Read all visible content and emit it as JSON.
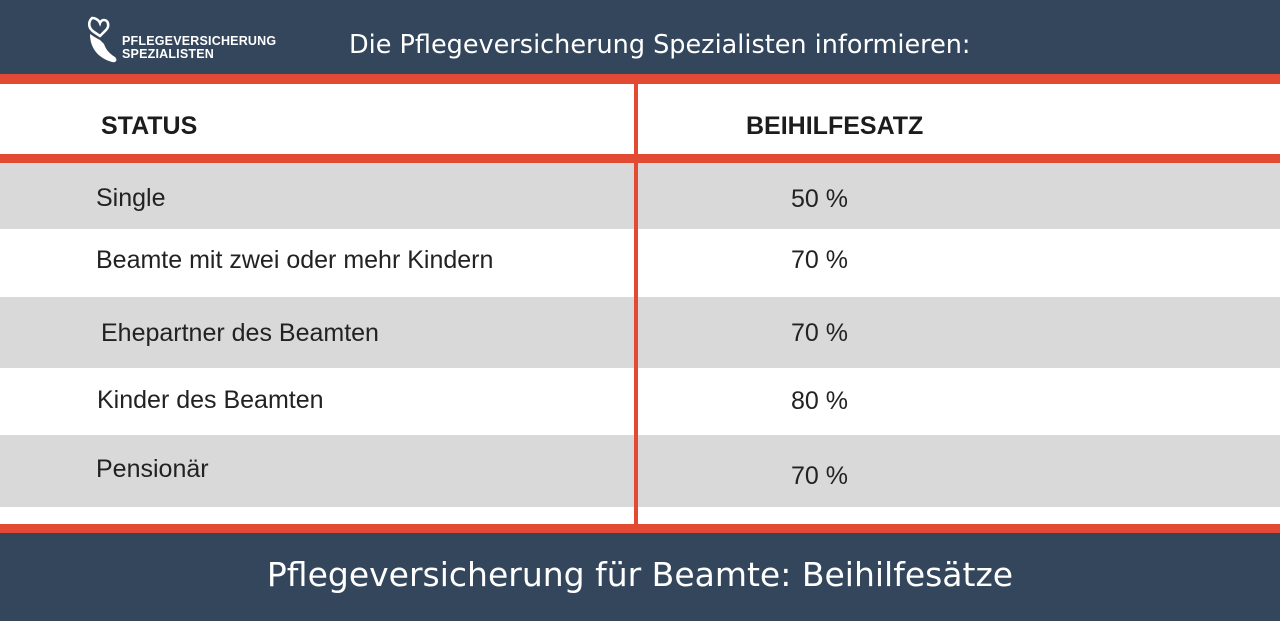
{
  "header": {
    "logo_line1": "PFLEGEVERSICHERUNG",
    "logo_line2": "SPEZIALISTEN",
    "title": "Die Pflegeversicherung Spezialisten informieren:"
  },
  "table": {
    "columns": [
      "STATUS",
      "BEIHILFESATZ"
    ],
    "rows": [
      {
        "status": "Single",
        "rate": "50 %"
      },
      {
        "status": "Beamte mit zwei oder mehr Kindern",
        "rate": "70 %"
      },
      {
        "status": "Ehepartner des Beamten",
        "rate": "70 %"
      },
      {
        "status": "Kinder des Beamten",
        "rate": "80 %"
      },
      {
        "status": "Pensionär",
        "rate": "70 %"
      }
    ]
  },
  "footer": {
    "title": "Pflegeversicherung für Beamte: Beihilfesätze"
  },
  "colors": {
    "navy": "#34465c",
    "accent_red": "#e24a34",
    "row_gray": "#d9d9d9"
  }
}
